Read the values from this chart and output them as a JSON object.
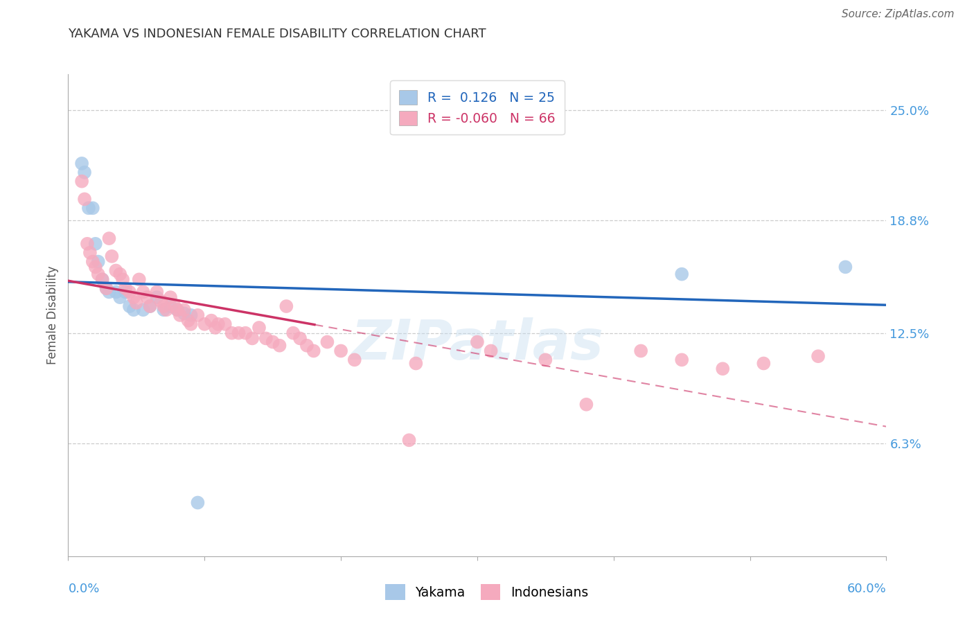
{
  "title": "YAKAMA VS INDONESIAN FEMALE DISABILITY CORRELATION CHART",
  "source": "Source: ZipAtlas.com",
  "ylabel": "Female Disability",
  "y_ticks": [
    0.063,
    0.125,
    0.188,
    0.25
  ],
  "y_tick_labels": [
    "6.3%",
    "12.5%",
    "18.8%",
    "25.0%"
  ],
  "xlim": [
    0.0,
    0.6
  ],
  "ylim": [
    0.0,
    0.27
  ],
  "yakama_R": 0.126,
  "yakama_N": 25,
  "indonesian_R": -0.06,
  "indonesian_N": 66,
  "yakama_color": "#a8c8e8",
  "indonesian_color": "#f5aabe",
  "yakama_line_color": "#2266bb",
  "indonesian_line_color": "#cc3366",
  "watermark_text": "ZIPatlas",
  "background_color": "#ffffff",
  "grid_color": "#cccccc",
  "title_color": "#333333",
  "source_color": "#666666",
  "right_label_color": "#4499dd",
  "bottom_label_color": "#4499dd",
  "legend_text_colors": [
    "#2266bb",
    "#cc3366"
  ],
  "yakama_x": [
    0.01,
    0.012,
    0.015,
    0.018,
    0.02,
    0.022,
    0.025,
    0.028,
    0.03,
    0.035,
    0.038,
    0.042,
    0.045,
    0.048,
    0.055,
    0.06,
    0.065,
    0.07,
    0.075,
    0.08,
    0.085,
    0.09,
    0.095,
    0.45,
    0.57
  ],
  "yakama_y": [
    0.22,
    0.215,
    0.195,
    0.195,
    0.175,
    0.165,
    0.155,
    0.15,
    0.148,
    0.148,
    0.145,
    0.148,
    0.14,
    0.138,
    0.138,
    0.14,
    0.145,
    0.138,
    0.14,
    0.138,
    0.136,
    0.135,
    0.03,
    0.158,
    0.162
  ],
  "indonesian_x": [
    0.01,
    0.012,
    0.014,
    0.016,
    0.018,
    0.02,
    0.022,
    0.025,
    0.028,
    0.03,
    0.032,
    0.035,
    0.038,
    0.04,
    0.042,
    0.045,
    0.048,
    0.05,
    0.052,
    0.055,
    0.058,
    0.06,
    0.065,
    0.068,
    0.07,
    0.072,
    0.075,
    0.078,
    0.08,
    0.082,
    0.085,
    0.088,
    0.09,
    0.095,
    0.1,
    0.105,
    0.108,
    0.11,
    0.115,
    0.12,
    0.125,
    0.13,
    0.135,
    0.14,
    0.145,
    0.15,
    0.155,
    0.16,
    0.165,
    0.17,
    0.175,
    0.18,
    0.19,
    0.2,
    0.21,
    0.25,
    0.255,
    0.3,
    0.31,
    0.35,
    0.38,
    0.42,
    0.45,
    0.48,
    0.51,
    0.55
  ],
  "indonesian_y": [
    0.21,
    0.2,
    0.175,
    0.17,
    0.165,
    0.162,
    0.158,
    0.155,
    0.15,
    0.178,
    0.168,
    0.16,
    0.158,
    0.155,
    0.15,
    0.148,
    0.145,
    0.142,
    0.155,
    0.148,
    0.145,
    0.14,
    0.148,
    0.143,
    0.14,
    0.138,
    0.145,
    0.14,
    0.138,
    0.135,
    0.138,
    0.132,
    0.13,
    0.135,
    0.13,
    0.132,
    0.128,
    0.13,
    0.13,
    0.125,
    0.125,
    0.125,
    0.122,
    0.128,
    0.122,
    0.12,
    0.118,
    0.14,
    0.125,
    0.122,
    0.118,
    0.115,
    0.12,
    0.115,
    0.11,
    0.065,
    0.108,
    0.12,
    0.115,
    0.11,
    0.085,
    0.115,
    0.11,
    0.105,
    0.108,
    0.112
  ]
}
